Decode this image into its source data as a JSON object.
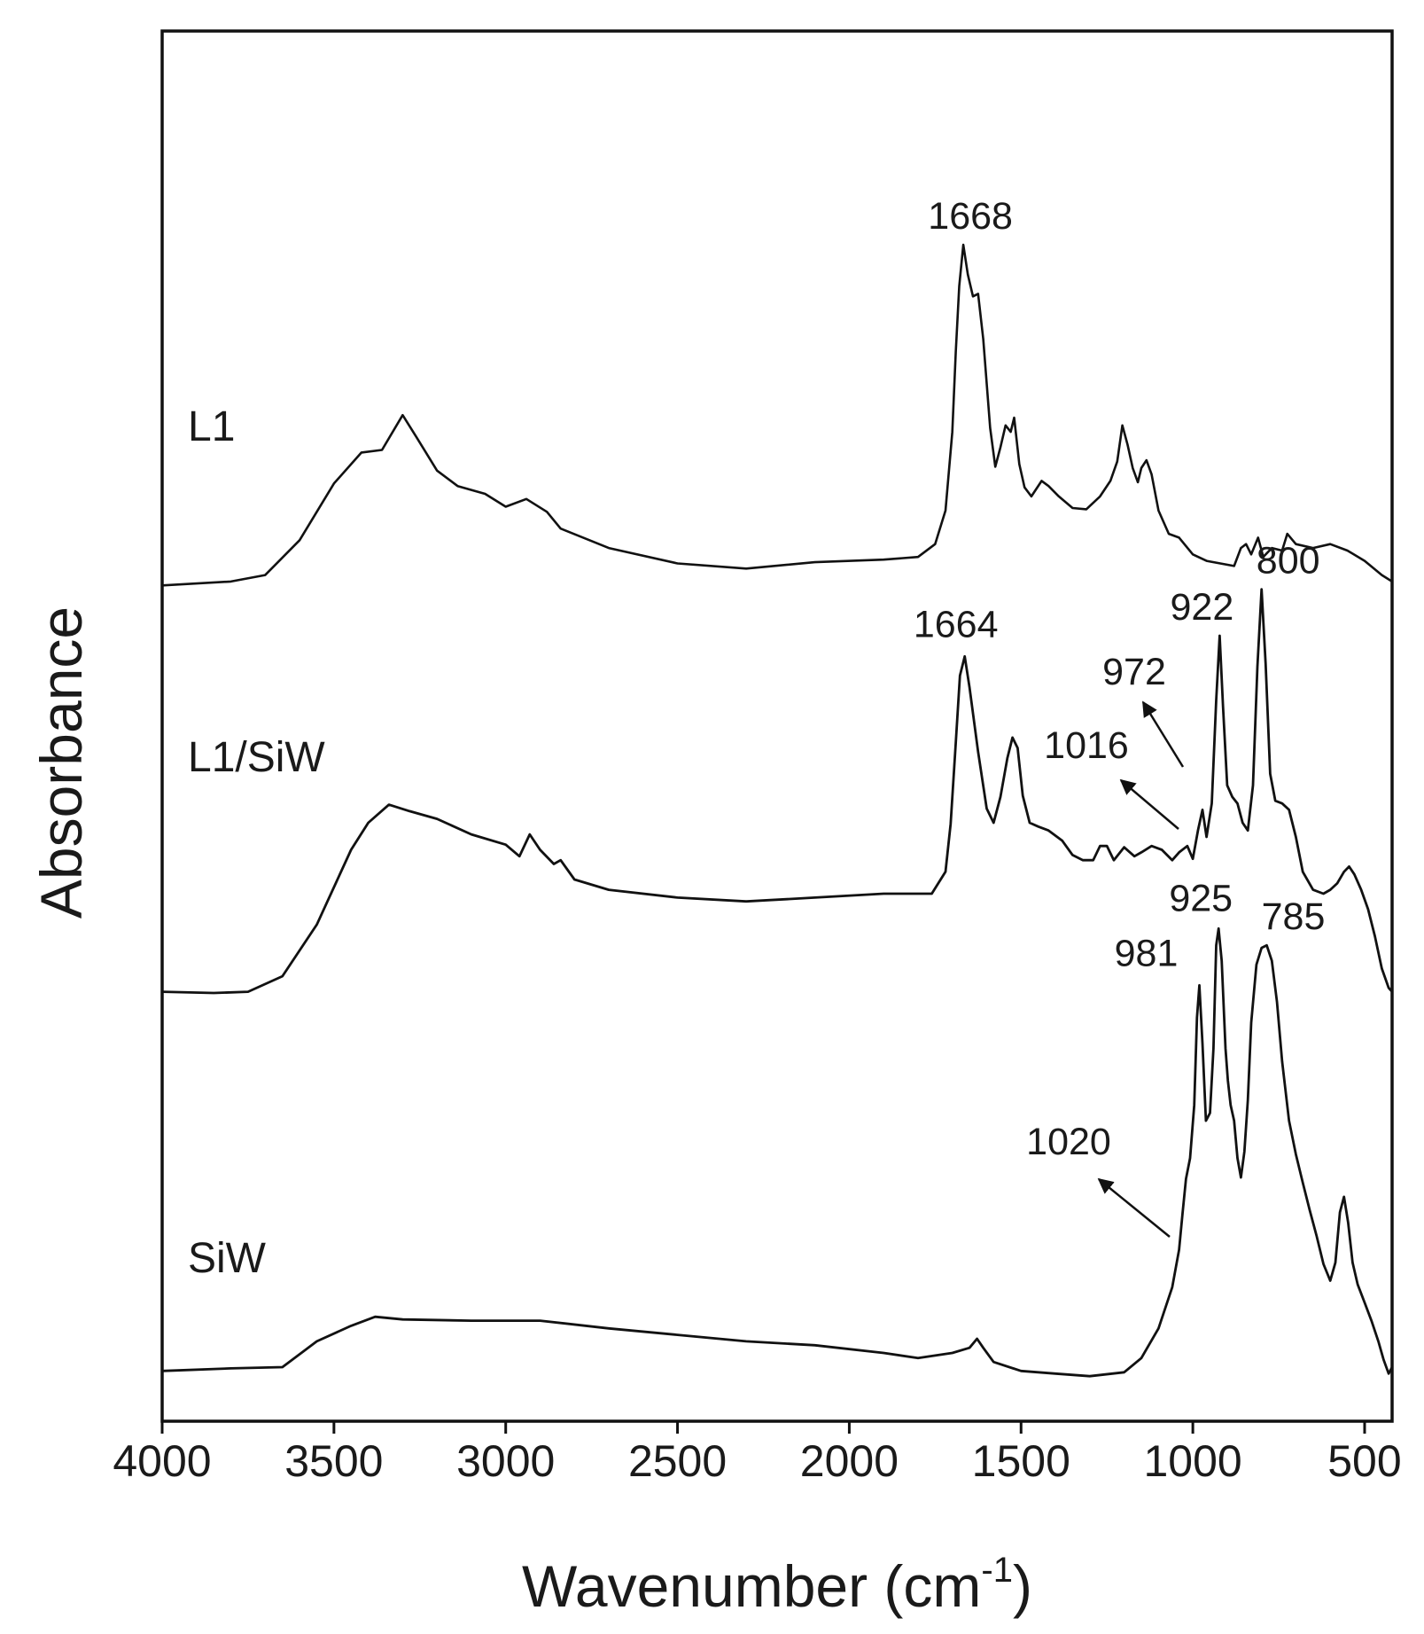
{
  "chart_data": {
    "type": "line",
    "title": "",
    "xlabel": "Wavenumber (cm",
    "xlabel_superscript": "-1",
    "xlabel_suffix": ")",
    "ylabel": "Absorbance",
    "xlim": [
      4000,
      420
    ],
    "x_reversed": true,
    "ylim": [
      0,
      100
    ],
    "y_ticks_shown": false,
    "grid": false,
    "x_ticks": [
      4000,
      3500,
      3000,
      2500,
      2000,
      1500,
      1000,
      500
    ],
    "x_tick_labels": [
      "4000",
      "3500",
      "3000",
      "2500",
      "2000",
      "1500",
      "1000",
      "500"
    ],
    "line_color": "#111111",
    "series": [
      {
        "name": "L1",
        "points": [
          [
            4000,
            63.9
          ],
          [
            3800,
            64.2
          ],
          [
            3700,
            64.7
          ],
          [
            3600,
            67.4
          ],
          [
            3500,
            71.8
          ],
          [
            3420,
            74.2
          ],
          [
            3360,
            74.4
          ],
          [
            3300,
            77.1
          ],
          [
            3260,
            75.4
          ],
          [
            3200,
            72.8
          ],
          [
            3140,
            71.6
          ],
          [
            3060,
            71.0
          ],
          [
            3000,
            70.0
          ],
          [
            2940,
            70.6
          ],
          [
            2880,
            69.6
          ],
          [
            2840,
            68.3
          ],
          [
            2700,
            66.8
          ],
          [
            2500,
            65.6
          ],
          [
            2300,
            65.2
          ],
          [
            2100,
            65.7
          ],
          [
            1900,
            65.9
          ],
          [
            1800,
            66.1
          ],
          [
            1750,
            67.1
          ],
          [
            1720,
            69.7
          ],
          [
            1700,
            75.8
          ],
          [
            1690,
            82.0
          ],
          [
            1680,
            87.1
          ],
          [
            1668,
            90.3
          ],
          [
            1655,
            88.0
          ],
          [
            1640,
            86.3
          ],
          [
            1625,
            86.5
          ],
          [
            1610,
            83.0
          ],
          [
            1590,
            76.1
          ],
          [
            1575,
            73.1
          ],
          [
            1560,
            74.6
          ],
          [
            1545,
            76.3
          ],
          [
            1530,
            75.8
          ],
          [
            1520,
            76.9
          ],
          [
            1505,
            73.3
          ],
          [
            1490,
            71.5
          ],
          [
            1470,
            70.8
          ],
          [
            1440,
            72.0
          ],
          [
            1420,
            71.6
          ],
          [
            1390,
            70.8
          ],
          [
            1350,
            69.9
          ],
          [
            1310,
            69.8
          ],
          [
            1270,
            70.8
          ],
          [
            1240,
            72.0
          ],
          [
            1220,
            73.5
          ],
          [
            1205,
            76.3
          ],
          [
            1190,
            74.8
          ],
          [
            1175,
            73.0
          ],
          [
            1160,
            71.9
          ],
          [
            1150,
            73.0
          ],
          [
            1135,
            73.6
          ],
          [
            1120,
            72.5
          ],
          [
            1100,
            69.7
          ],
          [
            1070,
            67.9
          ],
          [
            1040,
            67.6
          ],
          [
            1000,
            66.3
          ],
          [
            960,
            65.8
          ],
          [
            920,
            65.6
          ],
          [
            880,
            65.4
          ],
          [
            860,
            66.8
          ],
          [
            845,
            67.1
          ],
          [
            830,
            66.3
          ],
          [
            810,
            67.6
          ],
          [
            795,
            66.1
          ],
          [
            770,
            66.8
          ],
          [
            740,
            66.6
          ],
          [
            725,
            67.9
          ],
          [
            700,
            67.1
          ],
          [
            650,
            66.8
          ],
          [
            600,
            67.1
          ],
          [
            550,
            66.6
          ],
          [
            500,
            65.8
          ],
          [
            450,
            64.7
          ],
          [
            420,
            64.2
          ]
        ]
      },
      {
        "name": "L1/SiW",
        "points": [
          [
            4000,
            32.4
          ],
          [
            3850,
            32.3
          ],
          [
            3750,
            32.4
          ],
          [
            3650,
            33.6
          ],
          [
            3550,
            37.6
          ],
          [
            3450,
            43.4
          ],
          [
            3400,
            45.5
          ],
          [
            3340,
            46.9
          ],
          [
            3280,
            46.4
          ],
          [
            3200,
            45.8
          ],
          [
            3100,
            44.6
          ],
          [
            3000,
            43.8
          ],
          [
            2960,
            42.9
          ],
          [
            2930,
            44.6
          ],
          [
            2900,
            43.4
          ],
          [
            2860,
            42.3
          ],
          [
            2840,
            42.6
          ],
          [
            2800,
            41.1
          ],
          [
            2700,
            40.3
          ],
          [
            2500,
            39.7
          ],
          [
            2300,
            39.4
          ],
          [
            2100,
            39.7
          ],
          [
            1900,
            40.0
          ],
          [
            1760,
            40.0
          ],
          [
            1720,
            41.7
          ],
          [
            1705,
            45.4
          ],
          [
            1690,
            51.7
          ],
          [
            1678,
            56.9
          ],
          [
            1664,
            58.4
          ],
          [
            1650,
            56.0
          ],
          [
            1625,
            51.0
          ],
          [
            1600,
            46.6
          ],
          [
            1580,
            45.5
          ],
          [
            1560,
            47.5
          ],
          [
            1540,
            50.5
          ],
          [
            1525,
            52.1
          ],
          [
            1510,
            51.3
          ],
          [
            1495,
            47.6
          ],
          [
            1475,
            45.5
          ],
          [
            1450,
            45.2
          ],
          [
            1420,
            44.9
          ],
          [
            1380,
            44.1
          ],
          [
            1350,
            43.0
          ],
          [
            1320,
            42.6
          ],
          [
            1290,
            42.6
          ],
          [
            1270,
            43.7
          ],
          [
            1250,
            43.7
          ],
          [
            1230,
            42.6
          ],
          [
            1200,
            43.6
          ],
          [
            1170,
            42.9
          ],
          [
            1150,
            43.2
          ],
          [
            1120,
            43.7
          ],
          [
            1090,
            43.4
          ],
          [
            1060,
            42.6
          ],
          [
            1040,
            43.2
          ],
          [
            1016,
            43.7
          ],
          [
            1000,
            42.7
          ],
          [
            985,
            44.9
          ],
          [
            972,
            46.5
          ],
          [
            960,
            44.4
          ],
          [
            945,
            47.0
          ],
          [
            932,
            55.0
          ],
          [
            922,
            60.0
          ],
          [
            912,
            54.5
          ],
          [
            900,
            48.4
          ],
          [
            885,
            47.5
          ],
          [
            870,
            47.0
          ],
          [
            855,
            45.5
          ],
          [
            840,
            44.9
          ],
          [
            825,
            48.4
          ],
          [
            812,
            57.6
          ],
          [
            800,
            63.6
          ],
          [
            788,
            57.8
          ],
          [
            775,
            49.3
          ],
          [
            760,
            47.2
          ],
          [
            740,
            47.0
          ],
          [
            720,
            46.5
          ],
          [
            700,
            44.4
          ],
          [
            680,
            41.7
          ],
          [
            650,
            40.3
          ],
          [
            620,
            40.0
          ],
          [
            600,
            40.3
          ],
          [
            580,
            40.8
          ],
          [
            560,
            41.7
          ],
          [
            545,
            42.1
          ],
          [
            530,
            41.5
          ],
          [
            510,
            40.3
          ],
          [
            490,
            38.8
          ],
          [
            470,
            36.7
          ],
          [
            450,
            34.2
          ],
          [
            430,
            32.7
          ],
          [
            420,
            32.4
          ]
        ]
      },
      {
        "name": "SiW",
        "points": [
          [
            4000,
            3.0
          ],
          [
            3800,
            3.2
          ],
          [
            3650,
            3.3
          ],
          [
            3550,
            5.3
          ],
          [
            3450,
            6.5
          ],
          [
            3380,
            7.2
          ],
          [
            3300,
            7.0
          ],
          [
            3100,
            6.9
          ],
          [
            2900,
            6.9
          ],
          [
            2700,
            6.3
          ],
          [
            2500,
            5.8
          ],
          [
            2300,
            5.3
          ],
          [
            2100,
            5.0
          ],
          [
            1900,
            4.4
          ],
          [
            1800,
            4.0
          ],
          [
            1700,
            4.4
          ],
          [
            1650,
            4.8
          ],
          [
            1628,
            5.5
          ],
          [
            1610,
            4.8
          ],
          [
            1580,
            3.7
          ],
          [
            1500,
            3.0
          ],
          [
            1400,
            2.8
          ],
          [
            1300,
            2.6
          ],
          [
            1200,
            2.9
          ],
          [
            1150,
            4.0
          ],
          [
            1100,
            6.3
          ],
          [
            1060,
            9.5
          ],
          [
            1040,
            12.4
          ],
          [
            1030,
            15.2
          ],
          [
            1020,
            17.9
          ],
          [
            1008,
            19.5
          ],
          [
            996,
            23.6
          ],
          [
            988,
            30.4
          ],
          [
            981,
            32.9
          ],
          [
            972,
            28.4
          ],
          [
            962,
            22.4
          ],
          [
            950,
            23.0
          ],
          [
            940,
            28.0
          ],
          [
            932,
            36.0
          ],
          [
            925,
            37.3
          ],
          [
            916,
            34.8
          ],
          [
            905,
            28.0
          ],
          [
            898,
            25.5
          ],
          [
            890,
            23.6
          ],
          [
            880,
            22.4
          ],
          [
            870,
            19.5
          ],
          [
            860,
            18.0
          ],
          [
            850,
            20.0
          ],
          [
            840,
            24.0
          ],
          [
            830,
            30.0
          ],
          [
            815,
            34.5
          ],
          [
            800,
            35.8
          ],
          [
            785,
            36.0
          ],
          [
            770,
            34.8
          ],
          [
            755,
            31.6
          ],
          [
            740,
            27.0
          ],
          [
            720,
            22.4
          ],
          [
            700,
            19.8
          ],
          [
            680,
            17.6
          ],
          [
            660,
            15.5
          ],
          [
            640,
            13.5
          ],
          [
            620,
            11.3
          ],
          [
            600,
            10.0
          ],
          [
            585,
            11.4
          ],
          [
            572,
            15.3
          ],
          [
            560,
            16.5
          ],
          [
            548,
            14.5
          ],
          [
            535,
            11.4
          ],
          [
            520,
            9.7
          ],
          [
            500,
            8.3
          ],
          [
            480,
            6.9
          ],
          [
            460,
            5.3
          ],
          [
            445,
            3.9
          ],
          [
            430,
            2.8
          ],
          [
            420,
            3.3
          ]
        ]
      }
    ],
    "annotations": [
      {
        "text": "1668",
        "series": "L1",
        "x": 1668
      },
      {
        "text": "1664",
        "series": "L1/SiW",
        "x": 1664
      },
      {
        "text": "922",
        "series": "L1/SiW",
        "x": 922
      },
      {
        "text": "800",
        "series": "L1/SiW",
        "x": 800
      },
      {
        "text": "972",
        "series": "L1/SiW",
        "x": 972,
        "arrow": true
      },
      {
        "text": "1016",
        "series": "L1/SiW",
        "x": 1016,
        "arrow": true
      },
      {
        "text": "925",
        "series": "SiW",
        "x": 925
      },
      {
        "text": "785",
        "series": "SiW",
        "x": 785
      },
      {
        "text": "981",
        "series": "SiW",
        "x": 981
      },
      {
        "text": "1020",
        "series": "SiW",
        "x": 1020,
        "arrow": true
      }
    ]
  }
}
